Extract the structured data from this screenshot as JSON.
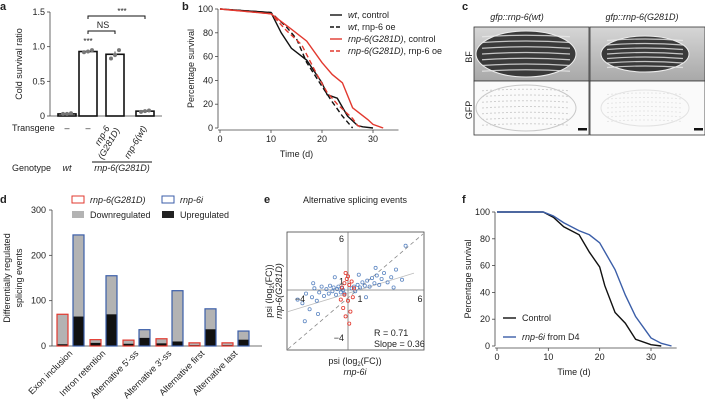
{
  "panels": {
    "a": "a",
    "b": "b",
    "c": "c",
    "d": "d",
    "e": "e",
    "f": "f"
  },
  "colors": {
    "red": "#e2392f",
    "blue": "#3b5ea8",
    "gray": "#b3b3b3",
    "black": "#111111"
  },
  "panel_a": {
    "row_transgene": "Transgene",
    "row_genotype": "Genotype",
    "transgene_labels": [
      "–",
      "–",
      "rnp-6\n(G281D)",
      "rnp-6(wt)"
    ],
    "transgene_l1": "rnp-6",
    "transgene_l2": "(G281D)",
    "transgene_wt": "rnp-6(wt)",
    "genotype_wt": "wt",
    "genotype_mut": "rnp-6(G281D)",
    "sig_bar": "***",
    "sig_ns": "NS",
    "sig_long": "***"
  },
  "panel_c": {
    "col1": "gfp::rnp-6(wt)",
    "col2": "gfp::rnp-6(G281D)",
    "row1": "BF",
    "row2": "GFP"
  },
  "chart_data": [
    {
      "panel": "a",
      "type": "bar",
      "ylabel": "Cold survival ratio",
      "ylim": [
        0,
        1.5
      ],
      "yticks": [
        "0",
        "0.5",
        "1.0",
        "1.5"
      ],
      "values": [
        0.03,
        0.93,
        0.89,
        0.07
      ],
      "points": [
        [
          0.03,
          0.03,
          0.04
        ],
        [
          0.92,
          0.93,
          0.95
        ],
        [
          0.83,
          0.88,
          0.95
        ],
        [
          0.06,
          0.07,
          0.08
        ]
      ],
      "sem": [
        0.005,
        0.01,
        0.04,
        0.006
      ]
    },
    {
      "panel": "b",
      "type": "line",
      "xlabel": "Time (d)",
      "ylabel": "Percentage survival",
      "xlim": [
        0,
        35
      ],
      "ylim": [
        0,
        100
      ],
      "xticks": [
        "0",
        "10",
        "20",
        "30"
      ],
      "yticks": [
        "0",
        "20",
        "40",
        "60",
        "80",
        "100"
      ],
      "legend": "top-right",
      "series": [
        {
          "name": "wt, control",
          "name_a": "wt",
          "name_b": ", control",
          "color": "#111111",
          "dash": false,
          "x": [
            0,
            10,
            12,
            14,
            17,
            20,
            21,
            23,
            25,
            27,
            28,
            30
          ],
          "y": [
            100,
            97,
            80,
            67,
            57,
            38,
            28,
            25,
            10,
            2,
            1,
            0
          ]
        },
        {
          "name": "wt, rnp-6 oe",
          "name_a": "wt",
          "name_b": ", rnp-6 oe",
          "color": "#111111",
          "dash": true,
          "x": [
            0,
            10,
            13,
            15,
            17,
            20,
            22,
            24,
            26
          ],
          "y": [
            100,
            97,
            85,
            75,
            55,
            35,
            22,
            10,
            0
          ]
        },
        {
          "name": "rnp-6(G281D), control",
          "name_a": "rnp-6(G281D)",
          "name_b": ", control",
          "color": "#e2392f",
          "dash": false,
          "x": [
            0,
            10,
            14,
            17,
            20,
            22,
            24,
            26,
            29,
            30,
            32
          ],
          "y": [
            100,
            96,
            83,
            73,
            55,
            45,
            38,
            17,
            7,
            3,
            0
          ]
        },
        {
          "name": "rnp-6(G281D), rnp-6 oe",
          "name_a": "rnp-6(G281D)",
          "name_b": ", rnp-6 oe",
          "color": "#e2392f",
          "dash": true,
          "x": [
            0,
            10,
            13,
            16,
            19,
            21,
            23,
            26,
            27,
            28
          ],
          "y": [
            100,
            96,
            82,
            70,
            45,
            30,
            20,
            8,
            2,
            0
          ]
        }
      ]
    },
    {
      "panel": "d",
      "type": "bar",
      "ylabel_l1": "Differentially regulated",
      "ylabel_l2": "splicing events",
      "ylim": [
        0,
        300
      ],
      "yticks": [
        "0",
        "100",
        "200",
        "300"
      ],
      "categories": [
        "Exon inclusion",
        "Intron retention",
        "Alternative 5′-ss",
        "Alternative 3′-ss",
        "Alternative first",
        "Alternative last"
      ],
      "legend": {
        "mut": "rnp-6(G281D)",
        "rnai": "rnp-6i",
        "down": "Downregulated",
        "up": "Upregulated"
      },
      "series": [
        {
          "name": "rnp-6(G281D)",
          "total": [
            70,
            14,
            13,
            16,
            7,
            7
          ],
          "up": [
            4,
            7,
            5,
            6,
            2,
            2
          ]
        },
        {
          "name": "rnp-6i",
          "total": [
            245,
            155,
            36,
            122,
            82,
            33
          ],
          "up": [
            65,
            70,
            18,
            10,
            37,
            14
          ]
        }
      ]
    },
    {
      "panel": "e",
      "type": "scatter",
      "title": "Alternative splicing events",
      "xlabel_l1": "psi (log",
      "xlabel_sub": "2",
      "xlabel_l2": "(FC))",
      "xlabel_gene": "rnp-6i",
      "ylabel_gene": "rnp-6(G281D)",
      "xticks": [
        "−4",
        "1",
        "6"
      ],
      "yticks": [
        "6",
        "1",
        "−4"
      ],
      "stats": {
        "r": "R = 0.71",
        "slope": "Slope = 0.36"
      },
      "regression_slope": 0.36,
      "blue_points": [
        [
          -4.2,
          -0.8
        ],
        [
          -3.8,
          -1.1
        ],
        [
          -3.5,
          -0.3
        ],
        [
          -3.2,
          -1.6
        ],
        [
          -3,
          -0.6
        ],
        [
          -2.8,
          0.2
        ],
        [
          -2.6,
          -0.9
        ],
        [
          -2.4,
          -0.2
        ],
        [
          -2.2,
          0.4
        ],
        [
          -2,
          -0.5
        ],
        [
          -1.8,
          0.1
        ],
        [
          -1.6,
          -0.3
        ],
        [
          -1.5,
          0.5
        ],
        [
          -1.3,
          -0.1
        ],
        [
          -1.2,
          0.3
        ],
        [
          -1,
          -0.4
        ],
        [
          -0.9,
          0.1
        ],
        [
          -0.8,
          0.4
        ],
        [
          -0.6,
          -0.2
        ],
        [
          -0.5,
          0.2
        ],
        [
          -0.4,
          0
        ],
        [
          -0.3,
          -0.3
        ],
        [
          0.3,
          0.2
        ],
        [
          0.5,
          0.4
        ],
        [
          0.6,
          -0.1
        ],
        [
          0.8,
          0.6
        ],
        [
          1,
          0.3
        ],
        [
          1.2,
          0.9
        ],
        [
          1.4,
          0.5
        ],
        [
          1.6,
          1.1
        ],
        [
          1.8,
          0.4
        ],
        [
          2,
          1.4
        ],
        [
          2.2,
          0.8
        ],
        [
          2.4,
          1.7
        ],
        [
          2.6,
          0.6
        ],
        [
          2.8,
          1.3
        ],
        [
          3,
          2
        ],
        [
          3.3,
          0.9
        ],
        [
          3.6,
          1.5
        ],
        [
          4,
          2.4
        ],
        [
          4.5,
          1.2
        ],
        [
          -3.6,
          -2.6
        ],
        [
          -2.5,
          -2
        ],
        [
          1.5,
          -0.6
        ],
        [
          0.9,
          1.8
        ],
        [
          -1.1,
          1.5
        ],
        [
          2.3,
          2.6
        ],
        [
          4.8,
          5.2
        ],
        [
          -2.9,
          0.8
        ],
        [
          3.8,
          0.3
        ]
      ],
      "red_points": [
        [
          -0.4,
          -1.5
        ],
        [
          -0.3,
          0.8
        ],
        [
          -0.2,
          -2.2
        ],
        [
          -0.1,
          1.3
        ],
        [
          0,
          -0.9
        ],
        [
          0.1,
          0.6
        ],
        [
          0.2,
          -1.8
        ],
        [
          0.3,
          1
        ],
        [
          -0.5,
          0.3
        ],
        [
          0.4,
          -0.6
        ],
        [
          -0.2,
          2
        ],
        [
          0.1,
          -2.8
        ],
        [
          -0.6,
          -0.8
        ],
        [
          0.5,
          0.2
        ],
        [
          0,
          1.6
        ],
        [
          -0.3,
          -0.4
        ]
      ]
    },
    {
      "panel": "f",
      "type": "line",
      "xlabel": "Time (d)",
      "ylabel": "Percentage survival",
      "xlim": [
        0,
        35
      ],
      "ylim": [
        0,
        100
      ],
      "xticks": [
        "0",
        "10",
        "20",
        "30"
      ],
      "yticks": [
        "0",
        "20",
        "40",
        "60",
        "80",
        "100"
      ],
      "legend": "bottom-left",
      "series": [
        {
          "name": "Control",
          "color": "#111111",
          "x": [
            0,
            9,
            11,
            13,
            16,
            18,
            20,
            21,
            23,
            25,
            27,
            30,
            32
          ],
          "y": [
            100,
            100,
            96,
            89,
            83,
            70,
            59,
            45,
            25,
            17,
            5,
            1,
            0
          ]
        },
        {
          "name": "rnp-6i from D4",
          "name_a": "rnp-6i",
          "name_b": " from D4",
          "color": "#3b5ea8",
          "x": [
            0,
            9,
            11,
            13,
            16,
            18,
            20,
            23,
            25,
            27,
            30,
            32,
            34
          ],
          "y": [
            100,
            100,
            97,
            92,
            86,
            83,
            77,
            57,
            38,
            22,
            6,
            2,
            0
          ]
        }
      ]
    }
  ]
}
